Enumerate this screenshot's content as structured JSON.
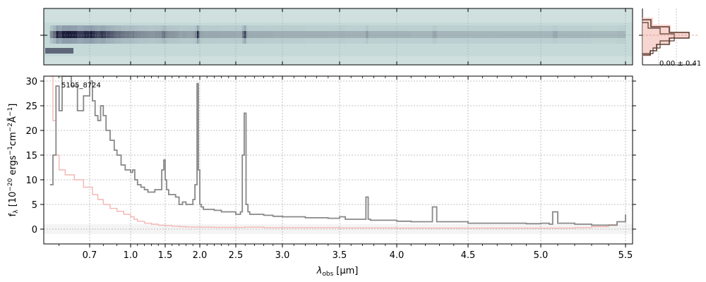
{
  "chart_data": [
    {
      "type": "heatmap",
      "panel": "2d-spectrum",
      "title": "",
      "colors": {
        "background": "#c5d9d8",
        "trace_dark": "#1b1b3a",
        "trace_mid": "#55607e"
      },
      "xlim": [
        0.55,
        5.52
      ],
      "grid": true
    },
    {
      "type": "line",
      "panel": "1d-spectrum",
      "object_label": "5105_8724",
      "xlabel_main": "λ",
      "xlabel_sub": "obs",
      "xlabel_units": "[μm]",
      "ylabel": "f_λ [10^-20 ergs^-1 cm^-2 Å^-1]",
      "ylabel_parts": {
        "base": "f",
        "sub": "λ",
        "open": " [10",
        "exp1": "−20",
        "mid1": " ergs",
        "exp2": "−1",
        "mid2": "cm",
        "exp3": "−2",
        "mid3": "Å",
        "exp4": "−1",
        "close": "]"
      },
      "xlim": [
        0.55,
        5.52
      ],
      "ylim": [
        -3,
        31
      ],
      "x_ticks": [
        0.7,
        1.0,
        1.5,
        2.0,
        2.5,
        3.0,
        3.5,
        4.0,
        4.5,
        5.0,
        5.5
      ],
      "x_tick_labels": [
        "0.7",
        "1.0",
        "1.5",
        "2.0",
        "2.5",
        "3.0",
        "3.5",
        "4.0",
        "4.5",
        "5.0",
        "5.5"
      ],
      "y_ticks": [
        0,
        5,
        10,
        15,
        20,
        25,
        30
      ],
      "y_tick_labels": [
        "0",
        "5",
        "10",
        "15",
        "20",
        "25",
        "30"
      ],
      "grid": true,
      "series": [
        {
          "role": "flux",
          "color": "#888888",
          "x": [
            0.57,
            0.58,
            0.59,
            0.6,
            0.61,
            0.62,
            0.64,
            0.66,
            0.68,
            0.7,
            0.72,
            0.74,
            0.76,
            0.78,
            0.8,
            0.82,
            0.85,
            0.88,
            0.9,
            0.93,
            0.96,
            1.0,
            1.03,
            1.06,
            1.1,
            1.15,
            1.2,
            1.25,
            1.3,
            1.35,
            1.4,
            1.45,
            1.48,
            1.5,
            1.52,
            1.55,
            1.6,
            1.65,
            1.7,
            1.75,
            1.8,
            1.85,
            1.9,
            1.93,
            1.96,
            1.98,
            2.0,
            2.02,
            2.05,
            2.1,
            2.2,
            2.3,
            2.4,
            2.5,
            2.55,
            2.57,
            2.59,
            2.61,
            2.63,
            2.65,
            2.7,
            2.8,
            2.9,
            3.0,
            3.2,
            3.4,
            3.5,
            3.55,
            3.6,
            3.7,
            3.73,
            3.75,
            3.77,
            3.8,
            3.9,
            4.0,
            4.1,
            4.2,
            4.25,
            4.28,
            4.3,
            4.4,
            4.5,
            4.6,
            4.7,
            4.8,
            4.9,
            5.0,
            5.05,
            5.07,
            5.1,
            5.2,
            5.3,
            5.4,
            5.45,
            5.5
          ],
          "y": [
            9,
            15,
            29,
            24,
            31,
            31,
            29,
            24,
            27,
            30,
            26,
            23,
            22,
            25,
            23,
            20,
            18,
            16,
            15,
            13,
            12,
            11.5,
            12,
            10,
            9,
            8.5,
            8,
            7.5,
            7.5,
            8,
            8,
            12,
            14,
            10,
            8,
            7,
            7,
            6.5,
            5,
            5.5,
            5,
            5,
            6,
            9,
            29.5,
            12,
            5,
            4.5,
            4,
            4,
            3.8,
            3.5,
            3.5,
            3,
            3.5,
            15,
            23.5,
            5,
            3.5,
            3,
            3,
            2.8,
            2.6,
            2.5,
            2.3,
            2.2,
            2.5,
            2,
            2,
            2,
            6.5,
            2,
            1.8,
            1.8,
            1.8,
            1.6,
            1.5,
            1.5,
            4.5,
            1.5,
            1.5,
            1.5,
            1.2,
            1.2,
            1.2,
            1.2,
            1.1,
            1.2,
            1,
            3.5,
            1.2,
            1,
            0.8,
            0.8,
            1.5,
            3
          ]
        },
        {
          "role": "uncertainty",
          "color": "#f4b6b4",
          "x": [
            0.57,
            0.58,
            0.59,
            0.6,
            0.62,
            0.65,
            0.68,
            0.72,
            0.76,
            0.8,
            0.85,
            0.9,
            0.95,
            1.0,
            1.05,
            1.1,
            1.2,
            1.3,
            1.4,
            1.5,
            1.6,
            1.7,
            1.8,
            1.9,
            2.0,
            2.2,
            2.4,
            2.6,
            2.8,
            3.0,
            3.5,
            4.0,
            4.5,
            5.0,
            5.2,
            5.3,
            5.4,
            5.45,
            5.5
          ],
          "y": [
            31,
            22,
            15,
            12,
            11,
            10,
            8.5,
            7,
            6,
            5,
            4.2,
            3.6,
            3,
            2.5,
            2,
            1.6,
            1.2,
            1,
            0.8,
            0.7,
            0.6,
            0.5,
            0.45,
            0.4,
            0.4,
            0.35,
            0.35,
            0.4,
            0.3,
            0.3,
            0.25,
            0.2,
            0.2,
            0.2,
            0.3,
            0.5,
            0.9,
            1.5,
            2.5
          ]
        }
      ]
    },
    {
      "type": "histogram",
      "panel": "residual-histogram",
      "label": "0.00 ± 0.41",
      "colors": {
        "fill": "#f5cbc4",
        "step": "#5a3a2e",
        "center_line": "#d98a80"
      }
    }
  ]
}
